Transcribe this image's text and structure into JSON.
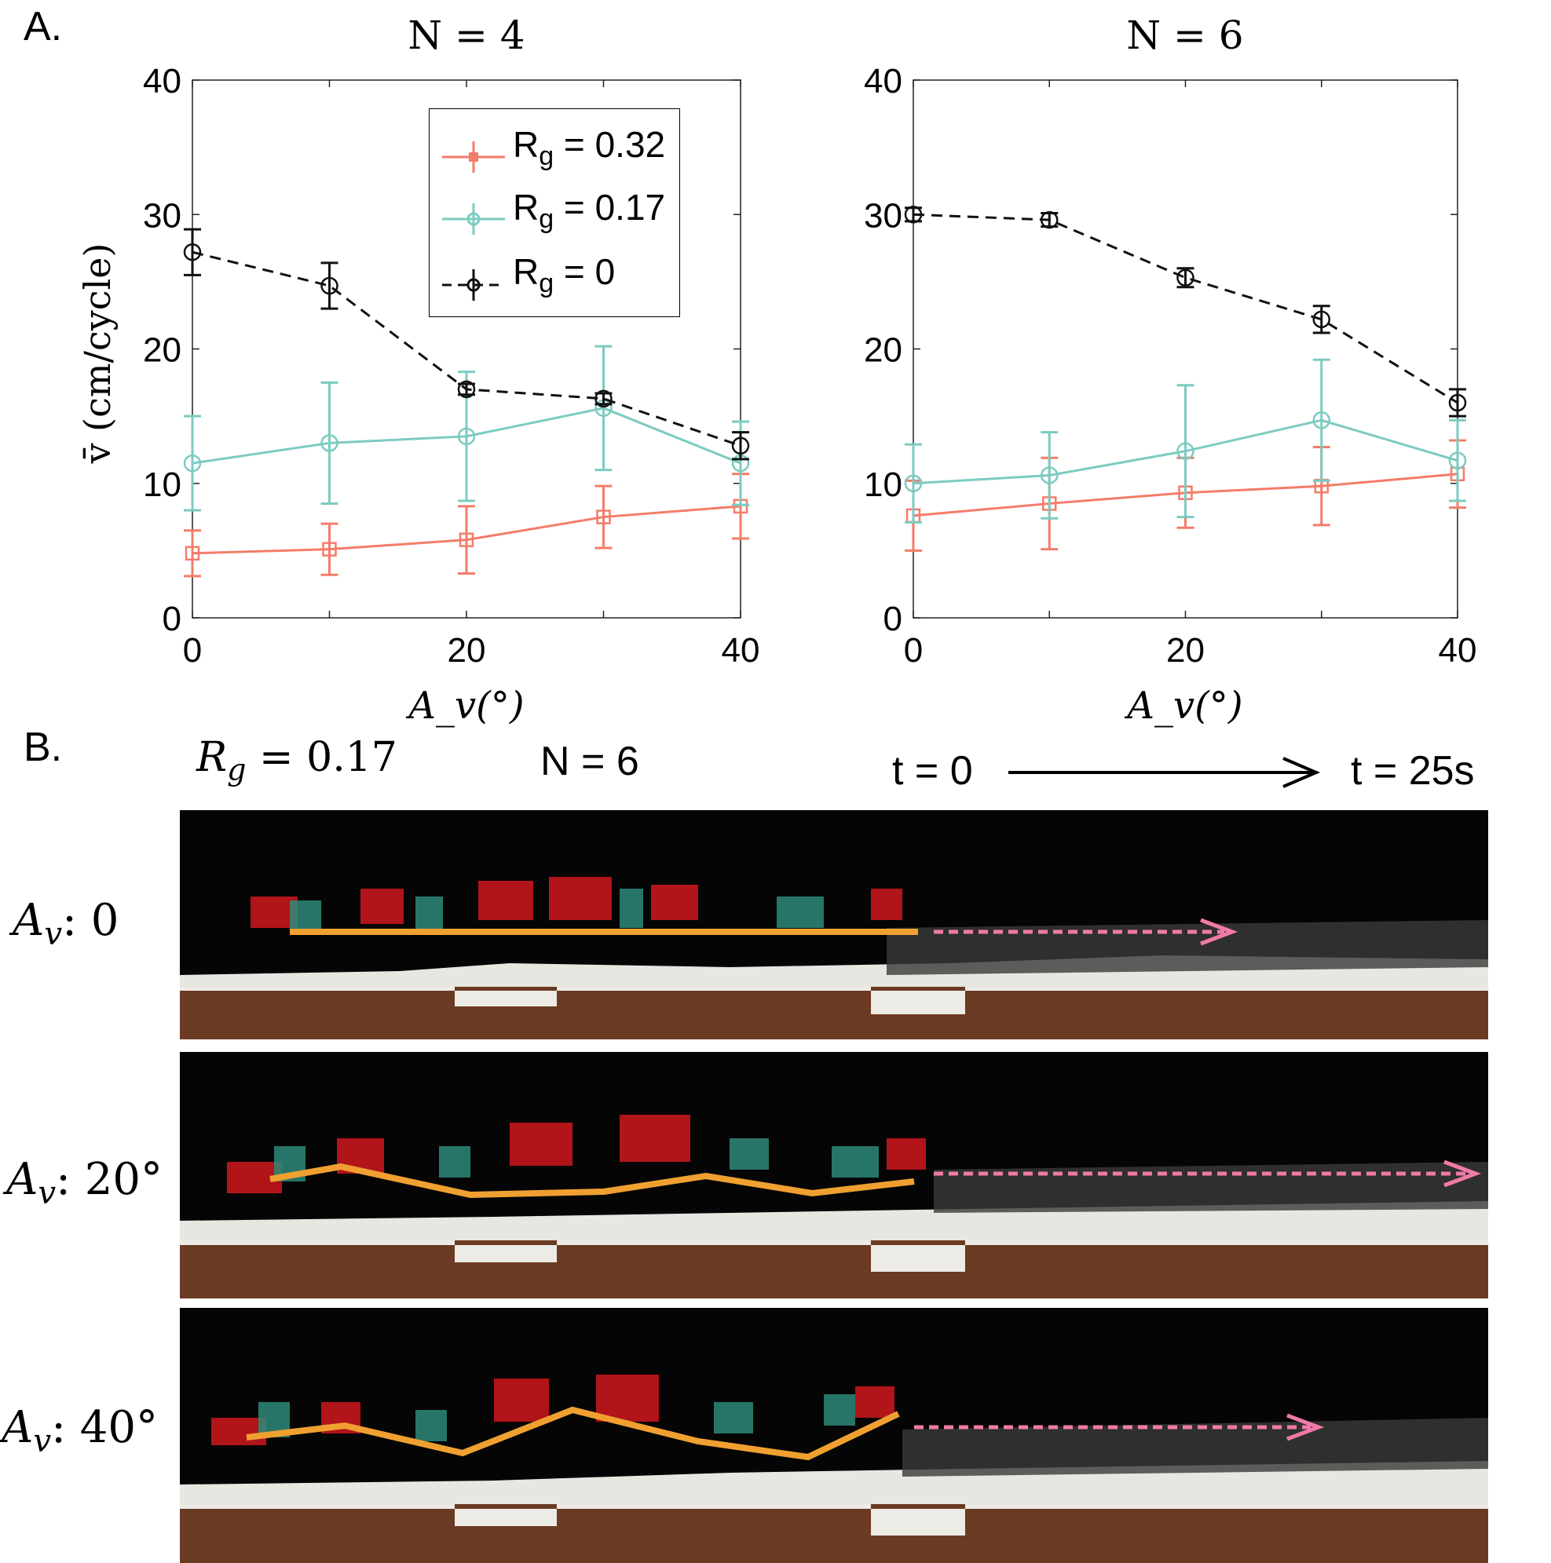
{
  "panel_a_label": "A.",
  "panel_b_label": "B.",
  "colors": {
    "rg032": "#f47c6a",
    "rg017": "#7ccbc1",
    "rg0": "#111111",
    "path": "#f0a030",
    "arrow": "#f07aa8"
  },
  "chart_data": [
    {
      "type": "line",
      "title": "N = 4",
      "xlabel": "A_v(°)",
      "ylabel": "v̄ (cm/cycle)",
      "xlim": [
        0,
        40
      ],
      "ylim": [
        0,
        40
      ],
      "xticks": [
        "0",
        "20",
        "40"
      ],
      "yticks": [
        "0",
        "10",
        "20",
        "30",
        "40"
      ],
      "x": [
        0,
        10,
        20,
        30,
        40
      ],
      "legend": "inside-top",
      "series": [
        {
          "name": "R_g = 0.32",
          "marker": "square",
          "dash": false,
          "values": [
            4.8,
            5.1,
            5.8,
            7.5,
            8.3
          ],
          "err": [
            1.7,
            1.9,
            2.5,
            2.3,
            2.4
          ]
        },
        {
          "name": "R_g = 0.17",
          "marker": "circle",
          "dash": false,
          "values": [
            11.5,
            13.0,
            13.5,
            15.6,
            11.5
          ],
          "err": [
            3.5,
            4.5,
            4.8,
            4.6,
            3.1
          ]
        },
        {
          "name": "R_g = 0",
          "marker": "circle",
          "dash": true,
          "values": [
            27.2,
            24.7,
            17.0,
            16.3,
            12.8
          ],
          "err": [
            1.7,
            1.7,
            0.4,
            0.4,
            1.0
          ]
        }
      ]
    },
    {
      "type": "line",
      "title": "N = 6",
      "xlabel": "A_v(°)",
      "ylabel": "",
      "xlim": [
        0,
        40
      ],
      "ylim": [
        0,
        40
      ],
      "xticks": [
        "0",
        "20",
        "40"
      ],
      "yticks": [
        "0",
        "10",
        "20",
        "30",
        "40"
      ],
      "x": [
        0,
        10,
        20,
        30,
        40
      ],
      "series": [
        {
          "name": "R_g = 0.32",
          "marker": "square",
          "dash": false,
          "values": [
            7.6,
            8.5,
            9.3,
            9.8,
            10.7
          ],
          "err": [
            2.6,
            3.4,
            2.6,
            2.9,
            2.5
          ]
        },
        {
          "name": "R_g = 0.17",
          "marker": "circle",
          "dash": false,
          "values": [
            10.0,
            10.6,
            12.4,
            14.7,
            11.7
          ],
          "err": [
            2.9,
            3.2,
            4.9,
            4.5,
            3.0
          ]
        },
        {
          "name": "R_g = 0",
          "marker": "circle",
          "dash": true,
          "values": [
            30.0,
            29.6,
            25.3,
            22.2,
            16.0
          ],
          "err": [
            0.5,
            0.5,
            0.7,
            1.0,
            1.0
          ]
        }
      ]
    }
  ],
  "legend": {
    "items": [
      {
        "main": "R",
        "sub": "g",
        "rest": " = 0.32"
      },
      {
        "main": "R",
        "sub": "g",
        "rest": " = 0.17"
      },
      {
        "main": "R",
        "sub": "g",
        "rest": " = 0"
      }
    ]
  },
  "panel_b": {
    "rg_main": "R",
    "rg_sub": "g",
    "rg_rest": " = 0.17",
    "n_label": "N = 6",
    "t_start": "t = 0",
    "t_end": "t = 25s",
    "rows": [
      {
        "label_main": "A",
        "label_sub": "v",
        "label_rest": ": 0"
      },
      {
        "label_main": "A",
        "label_sub": "v",
        "label_rest": ": 20°"
      },
      {
        "label_main": "A",
        "label_sub": "v",
        "label_rest": ": 40°"
      }
    ]
  }
}
